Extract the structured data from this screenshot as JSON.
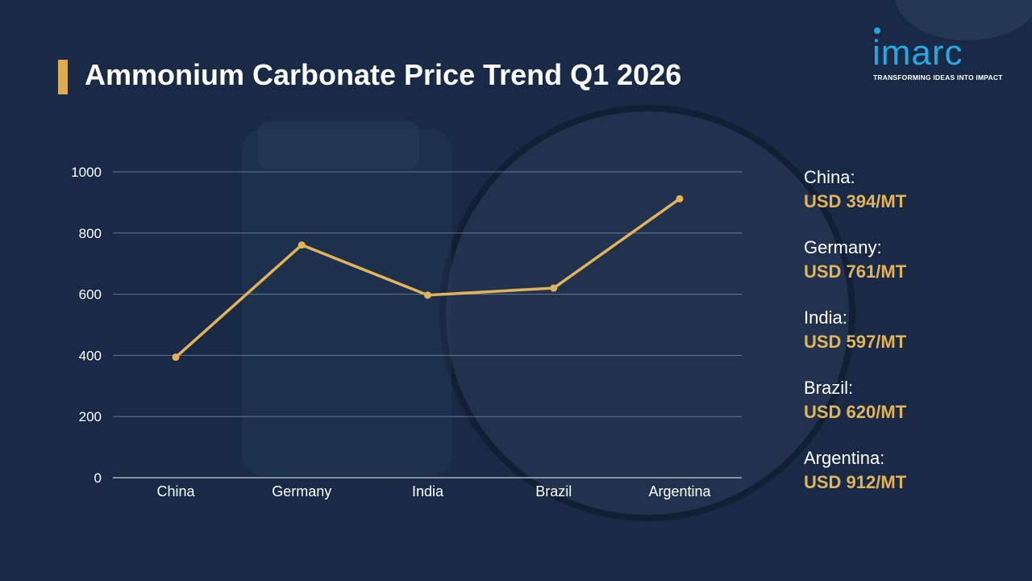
{
  "header": {
    "title": "Ammonium Carbonate Price Trend Q1 2026"
  },
  "logo": {
    "wordmark": "imarc",
    "tagline": "TRANSFORMING IDEAS INTO IMPACT"
  },
  "colors": {
    "background": "#182a45",
    "accent": "#e3a94f",
    "line": "#e3b35a",
    "logo": "#29a8e0",
    "text": "#ffffff"
  },
  "chart_data": {
    "type": "line",
    "categories": [
      "China",
      "Germany",
      "India",
      "Brazil",
      "Argentina"
    ],
    "values": [
      394,
      761,
      597,
      620,
      912
    ],
    "ylim": [
      0,
      1000
    ],
    "yticks": [
      0,
      200,
      400,
      600,
      800,
      1000
    ],
    "grid": true,
    "title": "",
    "xlabel": "",
    "ylabel": ""
  },
  "price_list": [
    {
      "country": "China:",
      "price": "USD 394/MT"
    },
    {
      "country": "Germany:",
      "price": "USD 761/MT"
    },
    {
      "country": "India:",
      "price": "USD 597/MT"
    },
    {
      "country": "Brazil:",
      "price": "USD 620/MT"
    },
    {
      "country": "Argentina:",
      "price": "USD 912/MT"
    }
  ]
}
